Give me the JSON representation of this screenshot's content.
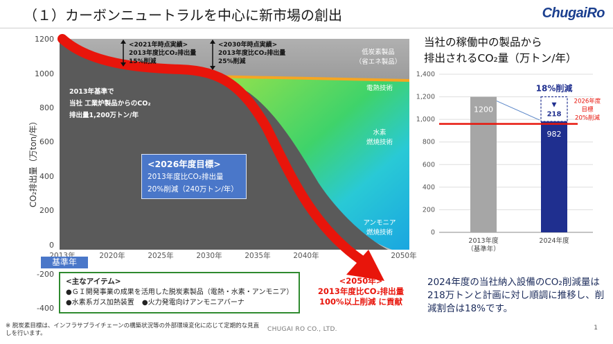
{
  "header": {
    "title": "（１）カーボンニュートラルを中心に新市場の創出",
    "logo": "ChugaiRo"
  },
  "left_chart": {
    "ylabel": "CO₂排出量（万ton/年）",
    "yticks": [
      "1200",
      "1000",
      "800",
      "600",
      "400",
      "200",
      "0",
      "-200",
      "-400"
    ],
    "xticks": [
      "2013年",
      "2020年",
      "2025年",
      "2030年",
      "2035年",
      "2040年",
      "2050年"
    ],
    "base_year_label": "基準年",
    "base_text": [
      "2013年基準で",
      "当社 工業炉製品からのCO₂",
      "排出量1,200万トン/年"
    ],
    "milestone_2021": [
      "<2021年時点実績>",
      "2013年度比CO₂排出量",
      "15%削減"
    ],
    "milestone_2030": [
      "<2030年時点実績>",
      "2013年度比CO₂排出量",
      "25%削減"
    ],
    "zone_labels": {
      "low_carbon": [
        "低炭素製品",
        "（省エネ製品）"
      ],
      "electric_heat": "電熱技術",
      "hydrogen": [
        "水素",
        "燃焼技術"
      ],
      "ammonia": [
        "アンモニア",
        "燃焼技術"
      ]
    },
    "goal_2026": {
      "title": "<2026年度目標>",
      "line1": "2013年度比CO₂排出量",
      "line2": "20%削減（240万トン/年）"
    },
    "goal_2050": {
      "title": "<2050年>",
      "line1": "2013年度比CO₂排出量",
      "line2": "100%以上削減 に貢献"
    },
    "items": {
      "title": "<主なアイテム>",
      "line1": "●ＧＩ開発事業の成果を活用した脱炭素製品（電熱・水素・アンモニア）",
      "line2a": "●水素系ガス加熱装置",
      "line2b": "●火力発電向けアンモニアバーナ"
    }
  },
  "chart_data": {
    "type": "bar",
    "title": "当社の稼働中の製品から排出されるCO₂量（万トン/年）",
    "categories": [
      "2013年度（基準年）",
      "2024年度"
    ],
    "series": [
      {
        "values": [
          1200,
          982
        ]
      }
    ],
    "reduction_value": 218,
    "reduction_label": "18%削減",
    "target_line": {
      "value": 960,
      "label": [
        "2026年度",
        "目標",
        "20%削減"
      ]
    },
    "ylim": [
      0,
      1400
    ],
    "yticks": [
      "0",
      "200",
      "400",
      "600",
      "800",
      "1,000",
      "1,200",
      "1,400"
    ],
    "grid": true,
    "colors": {
      "bar_2013": "#a6a6a6",
      "bar_2024": "#1f2f8f",
      "target": "#e8150b"
    }
  },
  "right_chart_title": [
    "当社の稼働中の製品から",
    "排出されるCO₂量（万トン/年）"
  ],
  "right_chart_cat_labels": [
    [
      "2013年度",
      "（基準年）"
    ],
    [
      "2024年度"
    ]
  ],
  "summary": "2024年度の当社納入設備のCO₂削減量は218万トンと計画に対し順調に推移し、削減割合は18%です。",
  "footer": {
    "footnote": "※ 脱炭素目標は、インフラサプライチェーンの構築状況等の外部環境変化に応じて定期的な見直しを行います。",
    "company": "CHUGAI RO CO., LTD.",
    "page": "1"
  }
}
